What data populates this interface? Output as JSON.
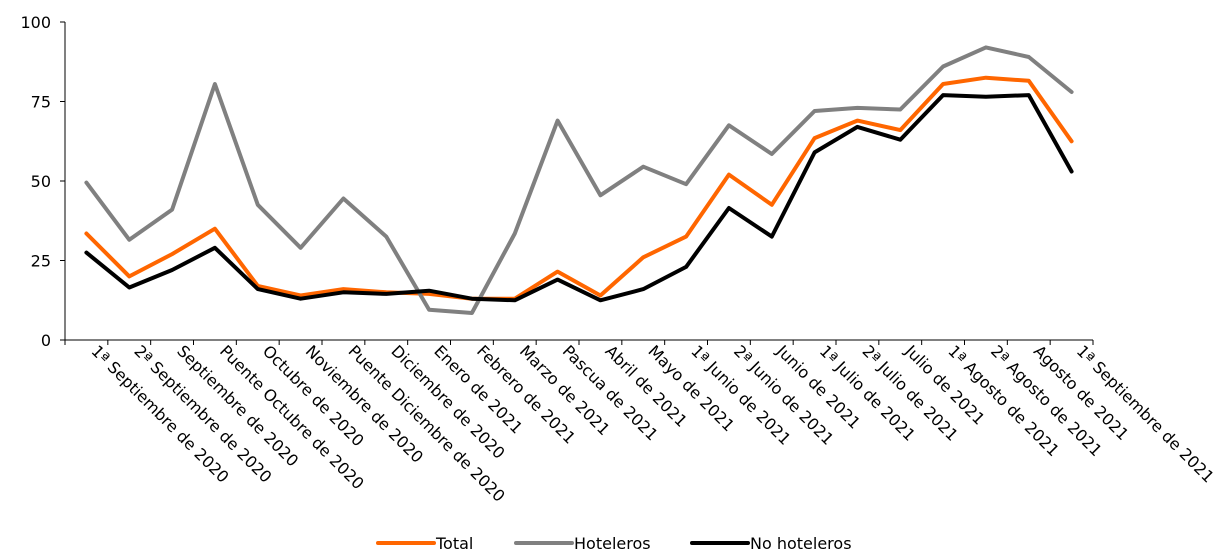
{
  "chart_data": {
    "type": "line",
    "title": "",
    "xlabel": "",
    "ylabel": "",
    "ylim": [
      0,
      100
    ],
    "yticks": [
      0,
      25,
      50,
      75,
      100
    ],
    "grid": false,
    "legend_position": "bottom",
    "categories": [
      "1ª Septiembre de 2020",
      "2ª Septiembre de 2020",
      "Septiembre de 2020",
      "Puente Octubre de 2020",
      "Octubre de 2020",
      "Noviembre de 2020",
      "Puente Diciembre de 2020",
      "Diciembre de 2020",
      "Enero de 2021",
      "Febrero de 2021",
      "Marzo de 2021",
      "Pascua de 2021",
      "Abril de 2021",
      "Mayo de 2021",
      "1ª Junio de 2021",
      "2ª Junio de 2021",
      "Junio de 2021",
      "1ª Julio de 2021",
      "2ª Julio de 2021",
      "Julio de 2021",
      "1ª Agosto de 2021",
      "2ª Agosto de 2021",
      "Agosto de 2021",
      "1ª Septiembre de 2021"
    ],
    "series": [
      {
        "name": "Total",
        "color": "#ff6600",
        "values": [
          33.5,
          20,
          27,
          35,
          17,
          14,
          16,
          15,
          14.5,
          13,
          13,
          21.5,
          14,
          26,
          32.5,
          52,
          42.5,
          63.5,
          69,
          66,
          80.5,
          82.5,
          81.5,
          62.5
        ]
      },
      {
        "name": "Hoteleros",
        "color": "#808080",
        "values": [
          49.5,
          31.5,
          41,
          80.5,
          42.5,
          29,
          44.5,
          32.5,
          9.5,
          8.5,
          33.5,
          69,
          45.5,
          54.5,
          49,
          67.5,
          58.5,
          72,
          73,
          72.5,
          86,
          92,
          89,
          78
        ]
      },
      {
        "name": "No hoteleros",
        "color": "#000000",
        "values": [
          27.5,
          16.5,
          22,
          29,
          16,
          13,
          15,
          14.5,
          15.5,
          13,
          12.5,
          19,
          12.5,
          16,
          23,
          41.5,
          32.5,
          59,
          67,
          63,
          77,
          76.5,
          77,
          53
        ]
      }
    ]
  }
}
